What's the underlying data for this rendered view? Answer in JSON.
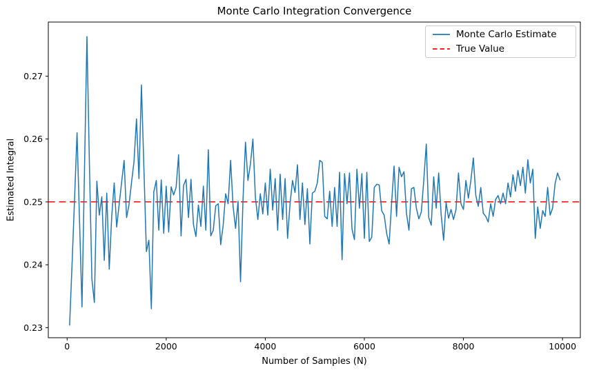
{
  "chart_data": {
    "type": "line",
    "title": "Monte Carlo Integration Convergence",
    "xlabel": "Number of Samples (N)",
    "ylabel": "Estimated Integral",
    "xlim": [
      -380,
      10360
    ],
    "ylim": [
      0.2284,
      0.2786
    ],
    "xticks": [
      0,
      2000,
      4000,
      6000,
      8000,
      10000
    ],
    "yticks": [
      0.23,
      0.24,
      0.25,
      0.26,
      0.27
    ],
    "grid": false,
    "legend_position": "upper right",
    "colors": {
      "frame": "#000000",
      "background": "#ffffff"
    },
    "series": [
      {
        "name": "Monte Carlo Estimate",
        "color": "#1f77b4",
        "style": "solid",
        "x": {
          "from": 50,
          "to": 9950,
          "step": 50
        },
        "y": [
          0.2304,
          0.2402,
          0.2505,
          0.261,
          0.2471,
          0.2333,
          0.2549,
          0.2763,
          0.256,
          0.2377,
          0.234,
          0.2533,
          0.2479,
          0.2508,
          0.2407,
          0.2514,
          0.2393,
          0.2477,
          0.253,
          0.246,
          0.2496,
          0.2531,
          0.2566,
          0.2475,
          0.2496,
          0.2531,
          0.2564,
          0.2632,
          0.2537,
          0.2686,
          0.2553,
          0.2421,
          0.2439,
          0.233,
          0.2516,
          0.2534,
          0.2455,
          0.2535,
          0.245,
          0.2525,
          0.2452,
          0.2524,
          0.2511,
          0.2523,
          0.2575,
          0.2446,
          0.2526,
          0.2536,
          0.2475,
          0.2536,
          0.2464,
          0.2445,
          0.2495,
          0.2461,
          0.2525,
          0.2455,
          0.2583,
          0.2446,
          0.2455,
          0.2494,
          0.2497,
          0.2432,
          0.2463,
          0.2513,
          0.2497,
          0.2566,
          0.2493,
          0.2458,
          0.2501,
          0.2373,
          0.2503,
          0.2595,
          0.2534,
          0.256,
          0.26,
          0.2508,
          0.2472,
          0.2513,
          0.2481,
          0.253,
          0.2479,
          0.2552,
          0.2487,
          0.2537,
          0.2455,
          0.2544,
          0.2472,
          0.2537,
          0.2442,
          0.2497,
          0.2534,
          0.2515,
          0.2559,
          0.2472,
          0.253,
          0.2464,
          0.2521,
          0.2433,
          0.2514,
          0.2517,
          0.253,
          0.2566,
          0.2563,
          0.2477,
          0.2473,
          0.2517,
          0.2461,
          0.2523,
          0.2461,
          0.2547,
          0.2408,
          0.2545,
          0.2497,
          0.2546,
          0.2457,
          0.244,
          0.2552,
          0.249,
          0.2545,
          0.2442,
          0.2547,
          0.2437,
          0.2444,
          0.2523,
          0.2528,
          0.2527,
          0.2486,
          0.2479,
          0.245,
          0.2433,
          0.2498,
          0.2557,
          0.2477,
          0.2555,
          0.254,
          0.2548,
          0.2482,
          0.2455,
          0.2521,
          0.2523,
          0.249,
          0.2473,
          0.2484,
          0.2535,
          0.2592,
          0.2475,
          0.2463,
          0.254,
          0.249,
          0.2546,
          0.248,
          0.2439,
          0.2499,
          0.2474,
          0.2488,
          0.2472,
          0.2488,
          0.2546,
          0.2497,
          0.2488,
          0.2534,
          0.2506,
          0.2534,
          0.257,
          0.251,
          0.2493,
          0.2523,
          0.2482,
          0.2477,
          0.2468,
          0.2497,
          0.2477,
          0.2504,
          0.251,
          0.2497,
          0.2514,
          0.2497,
          0.253,
          0.2508,
          0.2543,
          0.2517,
          0.255,
          0.2526,
          0.2555,
          0.2514,
          0.2567,
          0.253,
          0.2552,
          0.2442,
          0.2492,
          0.2458,
          0.2486,
          0.2477,
          0.2523,
          0.2479,
          0.249,
          0.2529,
          0.2546,
          0.2535
        ]
      },
      {
        "name": "True Value",
        "color": "#ff0000",
        "style": "dashed",
        "value": 0.25
      }
    ]
  }
}
